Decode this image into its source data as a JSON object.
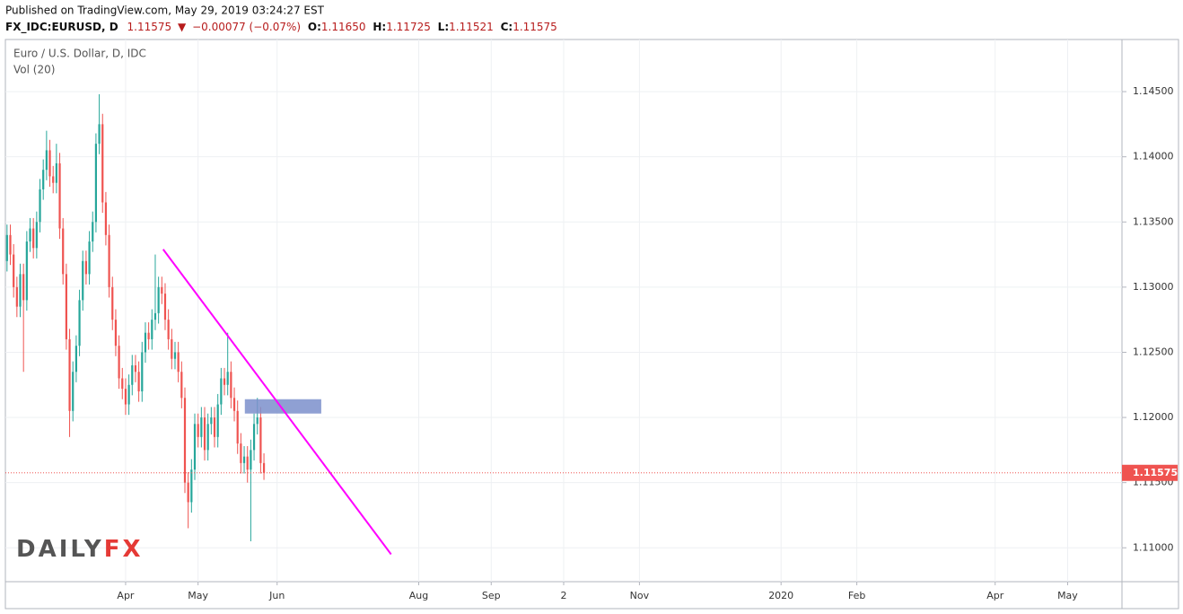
{
  "header": {
    "published": "Published on TradingView.com, May 29, 2019 03:24:27 EST",
    "symbol": "FX_IDC:EURUSD, D",
    "last": "1.11575",
    "change": "−0.00077 (−0.07%)",
    "ohlc": [
      {
        "label": "O:",
        "value": "1.11650"
      },
      {
        "label": "H:",
        "value": "1.11725"
      },
      {
        "label": "L:",
        "value": "1.11521"
      },
      {
        "label": "C:",
        "value": "1.11575"
      }
    ]
  },
  "chart_data": {
    "type": "candlestick",
    "legend": [
      "Euro / U.S. Dollar, D, IDC",
      "Vol (20)"
    ],
    "watermark": [
      "DAILY",
      "FX"
    ],
    "up_color": "#26a69a",
    "down_color": "#ef5350",
    "grid": true,
    "x": [
      0,
      1,
      2,
      3,
      4,
      5,
      6,
      7,
      8,
      9,
      10,
      11,
      12,
      13,
      14,
      15,
      16,
      17,
      18,
      19,
      20,
      21,
      22,
      23,
      24,
      25,
      26,
      27,
      28,
      29,
      30,
      31,
      32,
      33,
      34,
      35,
      36,
      37,
      38,
      39,
      40,
      41,
      42,
      43,
      44,
      45,
      46,
      47,
      48,
      49,
      50,
      51,
      52,
      53,
      54,
      55,
      56,
      57,
      58,
      59,
      60,
      61,
      62,
      63,
      64,
      65,
      66,
      67,
      68,
      69,
      70,
      71,
      72,
      73,
      74,
      75,
      76,
      77,
      78
    ],
    "open": [
      1.132,
      1.134,
      1.1325,
      1.13,
      1.1285,
      1.131,
      1.129,
      1.1335,
      1.1345,
      1.133,
      1.135,
      1.1375,
      1.139,
      1.1405,
      1.1385,
      1.138,
      1.1395,
      1.1345,
      1.131,
      1.126,
      1.1205,
      1.1235,
      1.1255,
      1.129,
      1.132,
      1.131,
      1.1335,
      1.135,
      1.141,
      1.1425,
      1.1365,
      1.134,
      1.13,
      1.1275,
      1.1255,
      1.123,
      1.1222,
      1.121,
      1.1225,
      1.124,
      1.1235,
      1.122,
      1.125,
      1.1265,
      1.126,
      1.1275,
      1.128,
      1.13,
      1.1295,
      1.1275,
      1.126,
      1.1245,
      1.125,
      1.1235,
      1.1215,
      1.115,
      1.1135,
      1.116,
      1.1195,
      1.1185,
      1.12,
      1.1175,
      1.1195,
      1.12,
      1.1185,
      1.121,
      1.123,
      1.1225,
      1.1235,
      1.1215,
      1.1205,
      1.118,
      1.1165,
      1.117,
      1.116,
      1.1175,
      1.1195,
      1.12,
      1.1165
    ],
    "high": [
      1.1348,
      1.1348,
      1.1333,
      1.1308,
      1.1318,
      1.1318,
      1.1343,
      1.1353,
      1.1353,
      1.1358,
      1.1383,
      1.1398,
      1.142,
      1.1413,
      1.1393,
      1.141,
      1.1403,
      1.1353,
      1.1318,
      1.1268,
      1.1243,
      1.1263,
      1.1298,
      1.1328,
      1.1328,
      1.1343,
      1.1358,
      1.1418,
      1.1448,
      1.1433,
      1.1373,
      1.1348,
      1.1308,
      1.1283,
      1.1263,
      1.1238,
      1.123,
      1.1233,
      1.1248,
      1.1248,
      1.1243,
      1.1258,
      1.1273,
      1.1273,
      1.1283,
      1.1325,
      1.1308,
      1.1308,
      1.1303,
      1.1283,
      1.1268,
      1.1258,
      1.1258,
      1.1243,
      1.1223,
      1.1158,
      1.1168,
      1.1203,
      1.1203,
      1.1208,
      1.1208,
      1.1203,
      1.1208,
      1.1208,
      1.1218,
      1.1238,
      1.1238,
      1.1265,
      1.1243,
      1.1223,
      1.1213,
      1.1188,
      1.1178,
      1.1178,
      1.1183,
      1.1203,
      1.1215,
      1.1208,
      1.11725
    ],
    "low": [
      1.1312,
      1.1317,
      1.1292,
      1.1277,
      1.1277,
      1.1235,
      1.1282,
      1.1327,
      1.1322,
      1.1322,
      1.1342,
      1.1367,
      1.1382,
      1.1377,
      1.1372,
      1.1372,
      1.1337,
      1.1302,
      1.1252,
      1.1185,
      1.1197,
      1.1227,
      1.1247,
      1.1282,
      1.1302,
      1.1302,
      1.1327,
      1.1342,
      1.1402,
      1.1357,
      1.1332,
      1.1292,
      1.1267,
      1.1247,
      1.1222,
      1.1214,
      1.1202,
      1.1202,
      1.1217,
      1.1227,
      1.1212,
      1.1212,
      1.1242,
      1.1252,
      1.1252,
      1.1267,
      1.1272,
      1.1287,
      1.1267,
      1.1252,
      1.1237,
      1.1237,
      1.1227,
      1.1207,
      1.1142,
      1.1115,
      1.1127,
      1.1152,
      1.1177,
      1.1177,
      1.1167,
      1.1167,
      1.1187,
      1.1177,
      1.1177,
      1.1202,
      1.1217,
      1.1217,
      1.1207,
      1.1197,
      1.1172,
      1.1157,
      1.1157,
      1.115,
      1.1105,
      1.1167,
      1.1187,
      1.1157,
      1.11521
    ],
    "close": [
      1.134,
      1.1325,
      1.13,
      1.1285,
      1.131,
      1.129,
      1.1335,
      1.1345,
      1.133,
      1.135,
      1.1375,
      1.139,
      1.1405,
      1.1385,
      1.138,
      1.1395,
      1.1345,
      1.131,
      1.126,
      1.1205,
      1.1235,
      1.1255,
      1.129,
      1.132,
      1.131,
      1.1335,
      1.135,
      1.141,
      1.1425,
      1.1365,
      1.134,
      1.13,
      1.1275,
      1.1255,
      1.123,
      1.1222,
      1.121,
      1.1225,
      1.124,
      1.1235,
      1.122,
      1.125,
      1.1265,
      1.126,
      1.1275,
      1.128,
      1.13,
      1.1295,
      1.1275,
      1.126,
      1.1245,
      1.125,
      1.1235,
      1.1215,
      1.115,
      1.1135,
      1.116,
      1.1195,
      1.1185,
      1.12,
      1.1175,
      1.1195,
      1.12,
      1.1185,
      1.121,
      1.123,
      1.1225,
      1.1235,
      1.1215,
      1.1205,
      1.118,
      1.1165,
      1.117,
      1.116,
      1.1175,
      1.1195,
      1.12,
      1.1165,
      1.11575
    ],
    "xlim": [
      -0.5,
      338.5
    ],
    "xticks": [
      {
        "value": 36,
        "label": "Apr"
      },
      {
        "value": 58,
        "label": "May"
      },
      {
        "value": 82,
        "label": "Jun"
      },
      {
        "value": 125,
        "label": "Aug"
      },
      {
        "value": 147,
        "label": "Sep"
      },
      {
        "value": 169,
        "label": "2"
      },
      {
        "value": 192,
        "label": "Nov"
      },
      {
        "value": 235,
        "label": "2020"
      },
      {
        "value": 258,
        "label": "Feb"
      },
      {
        "value": 300,
        "label": "Apr"
      },
      {
        "value": 322,
        "label": "May"
      }
    ],
    "ylim": [
      1.1074,
      1.149
    ],
    "yticks": [
      {
        "value": 1.11,
        "label": "1.11000"
      },
      {
        "value": 1.115,
        "label": "1.11500"
      },
      {
        "value": 1.12,
        "label": "1.12000"
      },
      {
        "value": 1.125,
        "label": "1.12500"
      },
      {
        "value": 1.13,
        "label": "1.13000"
      },
      {
        "value": 1.135,
        "label": "1.13500"
      },
      {
        "value": 1.14,
        "label": "1.14000"
      },
      {
        "value": 1.145,
        "label": "1.14500"
      }
    ],
    "last_price": 1.11575,
    "last_price_color": "#ef5350",
    "trendline": {
      "x": [
        47.4,
        116.6
      ],
      "y": [
        1.1329,
        1.1095
      ],
      "color": "#ff00ff"
    },
    "zone": {
      "x": [
        72.2,
        95.4
      ],
      "y": [
        1.1203,
        1.1214
      ],
      "color": "#7b8fcb"
    }
  }
}
